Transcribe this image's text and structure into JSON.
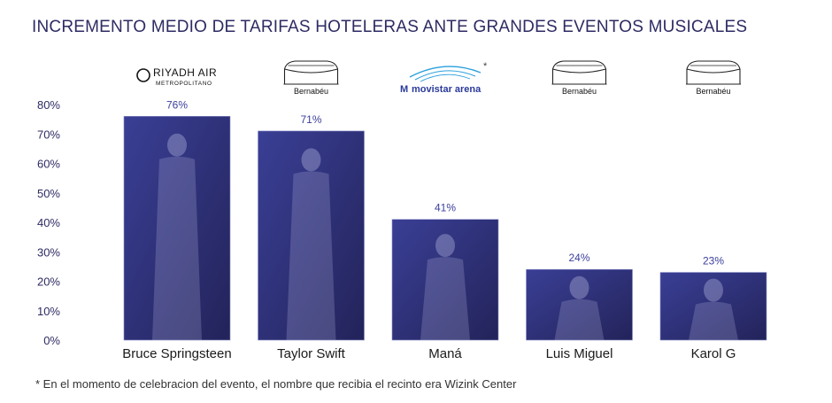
{
  "title": "INCREMENTO MEDIO DE TARIFAS HOTELERAS ANTE GRANDES EVENTOS MUSICALES",
  "footnote": "* En el momento de celebracion del evento, el nombre que recibia el recinto era Wizink Center",
  "colors": {
    "bar": "#23235a",
    "bar_light": "#3a3f95",
    "title": "#2d2b63",
    "value_label": "#3b3f9b"
  },
  "chart_data": {
    "type": "bar",
    "categories": [
      "Bruce Springsteen",
      "Taylor Swift",
      "Maná",
      "Luis Miguel",
      "Karol G"
    ],
    "values": [
      76,
      71,
      41,
      24,
      23
    ],
    "value_labels": [
      "76%",
      "71%",
      "41%",
      "24%",
      "23%"
    ],
    "y_ticks": [
      "0%",
      "10%",
      "20%",
      "30%",
      "40%",
      "50%",
      "60%",
      "70%",
      "80%"
    ],
    "ylim": [
      0,
      80
    ],
    "grid": false,
    "venues": [
      {
        "name": "RIYADH AIR",
        "sub": "METROPOLITANO",
        "icon": "riyadh-air-logo"
      },
      {
        "name": "Bernabéu",
        "icon": "stadium-icon"
      },
      {
        "name": "movistar arena",
        "icon": "movistar-arena-logo",
        "mark": "*"
      },
      {
        "name": "Bernabéu",
        "icon": "stadium-icon"
      },
      {
        "name": "Bernabéu",
        "icon": "stadium-icon"
      }
    ]
  }
}
